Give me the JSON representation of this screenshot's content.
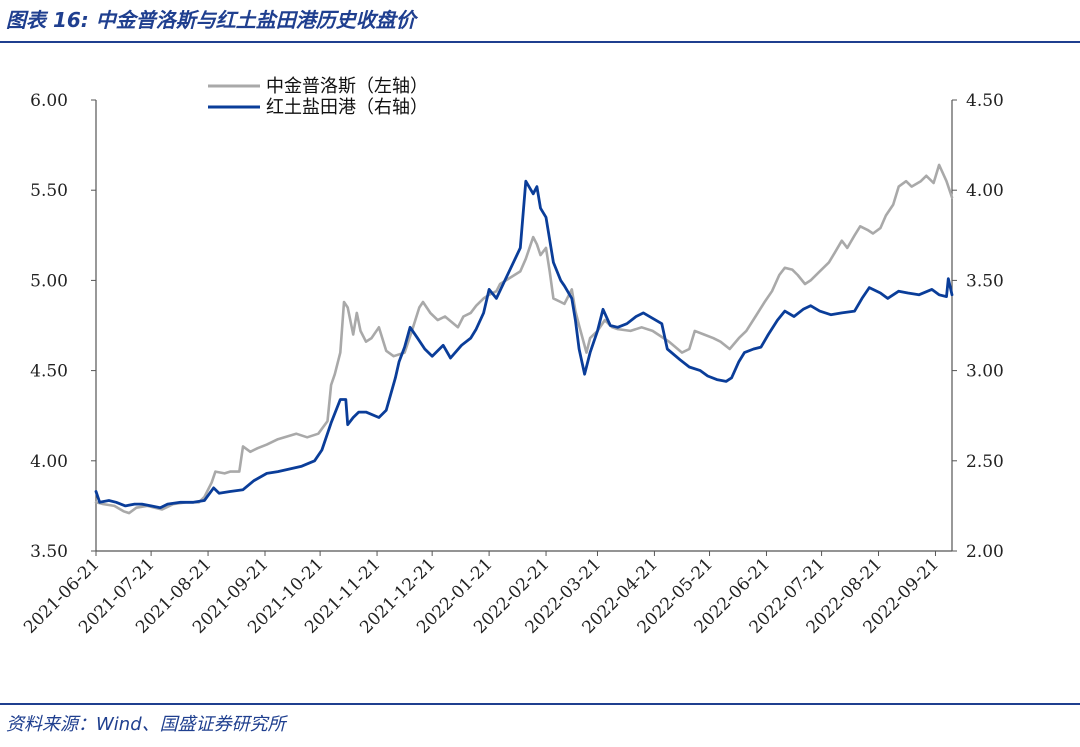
{
  "header": {
    "title": "图表 16:  中金普洛斯与红土盐田港历史收盘价"
  },
  "footer": {
    "source": "资料来源：Wind、国盛证券研究所"
  },
  "colors": {
    "accent": "#1f3f8f",
    "series_gray": "#a9a9a9",
    "series_blue": "#0a3d99"
  },
  "chart_data": {
    "type": "line",
    "title": "",
    "xlabel": "",
    "ylabel": "",
    "x_ticks": [
      "2021-06-21",
      "2021-07-21",
      "2021-08-21",
      "2021-09-21",
      "2021-10-21",
      "2021-11-21",
      "2021-12-21",
      "2022-01-21",
      "2022-02-21",
      "2022-03-21",
      "2022-04-21",
      "2022-05-21",
      "2022-06-21",
      "2022-07-21",
      "2022-08-21",
      "2022-09-21"
    ],
    "x_range": [
      "2021-06-21",
      "2022-09-30"
    ],
    "y_left": {
      "ticks": [
        "3.50",
        "4.00",
        "4.50",
        "5.00",
        "5.50",
        "6.00"
      ],
      "range": [
        3.5,
        6.0
      ]
    },
    "y_right": {
      "ticks": [
        "2.00",
        "2.50",
        "3.00",
        "3.50",
        "4.00",
        "4.50"
      ],
      "range": [
        2.0,
        4.5
      ]
    },
    "grid": false,
    "legend_position": "top-left",
    "series": [
      {
        "name": "中金普洛斯（左轴）",
        "axis": "left",
        "color": "#a9a9a9",
        "points": [
          [
            "2021-06-21",
            3.77
          ],
          [
            "2021-06-25",
            3.76
          ],
          [
            "2021-07-01",
            3.75
          ],
          [
            "2021-07-06",
            3.72
          ],
          [
            "2021-07-09",
            3.71
          ],
          [
            "2021-07-13",
            3.74
          ],
          [
            "2021-07-19",
            3.75
          ],
          [
            "2021-07-23",
            3.74
          ],
          [
            "2021-07-27",
            3.73
          ],
          [
            "2021-08-02",
            3.76
          ],
          [
            "2021-08-09",
            3.77
          ],
          [
            "2021-08-16",
            3.77
          ],
          [
            "2021-08-19",
            3.8
          ],
          [
            "2021-08-23",
            3.88
          ],
          [
            "2021-08-25",
            3.94
          ],
          [
            "2021-08-30",
            3.93
          ],
          [
            "2021-09-02",
            3.94
          ],
          [
            "2021-09-07",
            3.94
          ],
          [
            "2021-09-09",
            4.08
          ],
          [
            "2021-09-13",
            4.05
          ],
          [
            "2021-09-17",
            4.07
          ],
          [
            "2021-09-22",
            4.09
          ],
          [
            "2021-09-28",
            4.12
          ],
          [
            "2021-10-08",
            4.15
          ],
          [
            "2021-10-14",
            4.13
          ],
          [
            "2021-10-20",
            4.15
          ],
          [
            "2021-10-25",
            4.22
          ],
          [
            "2021-10-27",
            4.42
          ],
          [
            "2021-10-29",
            4.48
          ],
          [
            "2021-11-01",
            4.6
          ],
          [
            "2021-11-03",
            4.88
          ],
          [
            "2021-11-05",
            4.85
          ],
          [
            "2021-11-08",
            4.7
          ],
          [
            "2021-11-10",
            4.82
          ],
          [
            "2021-11-12",
            4.72
          ],
          [
            "2021-11-15",
            4.66
          ],
          [
            "2021-11-18",
            4.68
          ],
          [
            "2021-11-22",
            4.74
          ],
          [
            "2021-11-26",
            4.61
          ],
          [
            "2021-11-30",
            4.58
          ],
          [
            "2021-12-06",
            4.6
          ],
          [
            "2021-12-10",
            4.72
          ],
          [
            "2021-12-14",
            4.85
          ],
          [
            "2021-12-16",
            4.88
          ],
          [
            "2021-12-20",
            4.82
          ],
          [
            "2021-12-24",
            4.78
          ],
          [
            "2021-12-28",
            4.8
          ],
          [
            "2022-01-04",
            4.74
          ],
          [
            "2022-01-07",
            4.8
          ],
          [
            "2022-01-11",
            4.82
          ],
          [
            "2022-01-14",
            4.86
          ],
          [
            "2022-01-18",
            4.9
          ],
          [
            "2022-01-21",
            4.92
          ],
          [
            "2022-01-25",
            4.94
          ],
          [
            "2022-01-27",
            4.98
          ],
          [
            "2022-02-07",
            5.05
          ],
          [
            "2022-02-10",
            5.12
          ],
          [
            "2022-02-14",
            5.24
          ],
          [
            "2022-02-16",
            5.2
          ],
          [
            "2022-02-18",
            5.14
          ],
          [
            "2022-02-21",
            5.18
          ],
          [
            "2022-02-23",
            5.05
          ],
          [
            "2022-02-25",
            4.9
          ],
          [
            "2022-03-01",
            4.88
          ],
          [
            "2022-03-03",
            4.87
          ],
          [
            "2022-03-07",
            4.95
          ],
          [
            "2022-03-09",
            4.83
          ],
          [
            "2022-03-11",
            4.75
          ],
          [
            "2022-03-15",
            4.6
          ],
          [
            "2022-03-17",
            4.68
          ],
          [
            "2022-03-21",
            4.72
          ],
          [
            "2022-03-25",
            4.78
          ],
          [
            "2022-03-29",
            4.74
          ],
          [
            "2022-04-01",
            4.73
          ],
          [
            "2022-04-08",
            4.72
          ],
          [
            "2022-04-14",
            4.74
          ],
          [
            "2022-04-20",
            4.72
          ],
          [
            "2022-04-26",
            4.68
          ],
          [
            "2022-04-29",
            4.66
          ],
          [
            "2022-05-06",
            4.6
          ],
          [
            "2022-05-10",
            4.62
          ],
          [
            "2022-05-13",
            4.72
          ],
          [
            "2022-05-18",
            4.7
          ],
          [
            "2022-05-23",
            4.68
          ],
          [
            "2022-05-27",
            4.66
          ],
          [
            "2022-06-01",
            4.62
          ],
          [
            "2022-06-06",
            4.68
          ],
          [
            "2022-06-10",
            4.72
          ],
          [
            "2022-06-15",
            4.8
          ],
          [
            "2022-06-20",
            4.88
          ],
          [
            "2022-06-24",
            4.94
          ],
          [
            "2022-06-28",
            5.03
          ],
          [
            "2022-07-01",
            5.07
          ],
          [
            "2022-07-05",
            5.06
          ],
          [
            "2022-07-08",
            5.03
          ],
          [
            "2022-07-12",
            4.98
          ],
          [
            "2022-07-15",
            5.0
          ],
          [
            "2022-07-20",
            5.05
          ],
          [
            "2022-07-25",
            5.1
          ],
          [
            "2022-07-28",
            5.15
          ],
          [
            "2022-08-01",
            5.22
          ],
          [
            "2022-08-04",
            5.18
          ],
          [
            "2022-08-08",
            5.25
          ],
          [
            "2022-08-11",
            5.3
          ],
          [
            "2022-08-15",
            5.28
          ],
          [
            "2022-08-18",
            5.26
          ],
          [
            "2022-08-22",
            5.29
          ],
          [
            "2022-08-25",
            5.36
          ],
          [
            "2022-08-29",
            5.42
          ],
          [
            "2022-09-01",
            5.52
          ],
          [
            "2022-09-05",
            5.55
          ],
          [
            "2022-09-08",
            5.52
          ],
          [
            "2022-09-13",
            5.55
          ],
          [
            "2022-09-16",
            5.58
          ],
          [
            "2022-09-20",
            5.54
          ],
          [
            "2022-09-23",
            5.64
          ],
          [
            "2022-09-27",
            5.55
          ],
          [
            "2022-09-30",
            5.46
          ]
        ]
      },
      {
        "name": "红土盐田港（右轴）",
        "axis": "right",
        "color": "#0a3d99",
        "points": [
          [
            "2021-06-21",
            2.33
          ],
          [
            "2021-06-23",
            2.27
          ],
          [
            "2021-06-28",
            2.28
          ],
          [
            "2021-07-02",
            2.27
          ],
          [
            "2021-07-07",
            2.25
          ],
          [
            "2021-07-12",
            2.26
          ],
          [
            "2021-07-16",
            2.26
          ],
          [
            "2021-07-21",
            2.25
          ],
          [
            "2021-07-26",
            2.24
          ],
          [
            "2021-07-30",
            2.26
          ],
          [
            "2021-08-06",
            2.27
          ],
          [
            "2021-08-13",
            2.27
          ],
          [
            "2021-08-19",
            2.28
          ],
          [
            "2021-08-24",
            2.35
          ],
          [
            "2021-08-27",
            2.32
          ],
          [
            "2021-09-02",
            2.33
          ],
          [
            "2021-09-09",
            2.34
          ],
          [
            "2021-09-15",
            2.39
          ],
          [
            "2021-09-22",
            2.43
          ],
          [
            "2021-09-28",
            2.44
          ],
          [
            "2021-10-11",
            2.47
          ],
          [
            "2021-10-18",
            2.5
          ],
          [
            "2021-10-22",
            2.56
          ],
          [
            "2021-10-27",
            2.71
          ],
          [
            "2021-11-01",
            2.84
          ],
          [
            "2021-11-04",
            2.84
          ],
          [
            "2021-11-05",
            2.7
          ],
          [
            "2021-11-08",
            2.74
          ],
          [
            "2021-11-11",
            2.77
          ],
          [
            "2021-11-15",
            2.77
          ],
          [
            "2021-11-22",
            2.74
          ],
          [
            "2021-11-26",
            2.78
          ],
          [
            "2021-12-01",
            2.96
          ],
          [
            "2021-12-03",
            3.05
          ],
          [
            "2021-12-06",
            3.13
          ],
          [
            "2021-12-09",
            3.24
          ],
          [
            "2021-12-13",
            3.18
          ],
          [
            "2021-12-17",
            3.12
          ],
          [
            "2021-12-21",
            3.08
          ],
          [
            "2021-12-27",
            3.14
          ],
          [
            "2021-12-31",
            3.07
          ],
          [
            "2022-01-06",
            3.14
          ],
          [
            "2022-01-11",
            3.18
          ],
          [
            "2022-01-14",
            3.23
          ],
          [
            "2022-01-18",
            3.32
          ],
          [
            "2022-01-21",
            3.45
          ],
          [
            "2022-01-25",
            3.4
          ],
          [
            "2022-02-07",
            3.68
          ],
          [
            "2022-02-10",
            4.05
          ],
          [
            "2022-02-14",
            3.98
          ],
          [
            "2022-02-16",
            4.02
          ],
          [
            "2022-02-18",
            3.9
          ],
          [
            "2022-02-21",
            3.85
          ],
          [
            "2022-02-25",
            3.6
          ],
          [
            "2022-03-01",
            3.5
          ],
          [
            "2022-03-03",
            3.47
          ],
          [
            "2022-03-07",
            3.4
          ],
          [
            "2022-03-09",
            3.28
          ],
          [
            "2022-03-11",
            3.12
          ],
          [
            "2022-03-14",
            2.98
          ],
          [
            "2022-03-17",
            3.1
          ],
          [
            "2022-03-21",
            3.22
          ],
          [
            "2022-03-24",
            3.34
          ],
          [
            "2022-03-28",
            3.25
          ],
          [
            "2022-04-01",
            3.24
          ],
          [
            "2022-04-06",
            3.26
          ],
          [
            "2022-04-11",
            3.3
          ],
          [
            "2022-04-15",
            3.32
          ],
          [
            "2022-04-20",
            3.29
          ],
          [
            "2022-04-25",
            3.26
          ],
          [
            "2022-04-28",
            3.12
          ],
          [
            "2022-05-05",
            3.06
          ],
          [
            "2022-05-10",
            3.02
          ],
          [
            "2022-05-16",
            3.0
          ],
          [
            "2022-05-20",
            2.97
          ],
          [
            "2022-05-25",
            2.95
          ],
          [
            "2022-05-30",
            2.94
          ],
          [
            "2022-06-02",
            2.96
          ],
          [
            "2022-06-06",
            3.05
          ],
          [
            "2022-06-09",
            3.1
          ],
          [
            "2022-06-14",
            3.12
          ],
          [
            "2022-06-18",
            3.13
          ],
          [
            "2022-06-22",
            3.2
          ],
          [
            "2022-06-27",
            3.28
          ],
          [
            "2022-07-01",
            3.33
          ],
          [
            "2022-07-06",
            3.3
          ],
          [
            "2022-07-11",
            3.34
          ],
          [
            "2022-07-15",
            3.36
          ],
          [
            "2022-07-20",
            3.33
          ],
          [
            "2022-07-26",
            3.31
          ],
          [
            "2022-08-01",
            3.32
          ],
          [
            "2022-08-08",
            3.33
          ],
          [
            "2022-08-12",
            3.4
          ],
          [
            "2022-08-16",
            3.46
          ],
          [
            "2022-08-22",
            3.43
          ],
          [
            "2022-08-26",
            3.4
          ],
          [
            "2022-09-01",
            3.44
          ],
          [
            "2022-09-06",
            3.43
          ],
          [
            "2022-09-12",
            3.42
          ],
          [
            "2022-09-19",
            3.45
          ],
          [
            "2022-09-23",
            3.42
          ],
          [
            "2022-09-27",
            3.41
          ],
          [
            "2022-09-28",
            3.51
          ],
          [
            "2022-09-30",
            3.42
          ]
        ]
      }
    ]
  }
}
